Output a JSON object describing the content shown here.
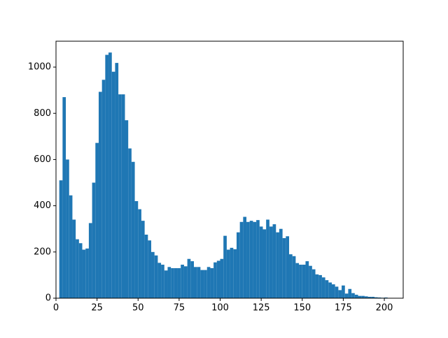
{
  "chart_data": {
    "type": "histogram",
    "bins": [
      2,
      4,
      6,
      8,
      10,
      12,
      14,
      16,
      18,
      20,
      22,
      24,
      26,
      28,
      30,
      32,
      34,
      36,
      38,
      40,
      42,
      44,
      46,
      48,
      50,
      52,
      54,
      56,
      58,
      60,
      62,
      64,
      66,
      68,
      70,
      72,
      74,
      76,
      78,
      80,
      82,
      84,
      86,
      88,
      90,
      92,
      94,
      96,
      98,
      100,
      102,
      104,
      106,
      108,
      110,
      112,
      114,
      116,
      118,
      120,
      122,
      124,
      126,
      128,
      130,
      132,
      134,
      136,
      138,
      140,
      142,
      144,
      146,
      148,
      150,
      152,
      154,
      156,
      158,
      160,
      162,
      164,
      166,
      168,
      170,
      172,
      174,
      176,
      178,
      180,
      182,
      184,
      186,
      188,
      190,
      192,
      194,
      196,
      198,
      200,
      202
    ],
    "values": [
      510,
      870,
      600,
      445,
      340,
      255,
      238,
      210,
      215,
      325,
      500,
      672,
      893,
      945,
      1053,
      1063,
      980,
      1018,
      882,
      882,
      770,
      648,
      590,
      420,
      385,
      335,
      275,
      250,
      200,
      185,
      153,
      145,
      120,
      135,
      130,
      130,
      130,
      145,
      138,
      170,
      160,
      135,
      135,
      122,
      122,
      135,
      130,
      155,
      162,
      170,
      270,
      210,
      218,
      212,
      285,
      330,
      352,
      330,
      335,
      330,
      338,
      310,
      298,
      340,
      310,
      320,
      285,
      300,
      260,
      268,
      190,
      182,
      152,
      145,
      145,
      160,
      140,
      125,
      103,
      100,
      90,
      78,
      68,
      60,
      50,
      35,
      55,
      20,
      40,
      22,
      15,
      10,
      10,
      8,
      6,
      6,
      4,
      3,
      2,
      3
    ],
    "color": "#1f77b4",
    "xlim": [
      0,
      211.5
    ],
    "ylim": [
      0,
      1112
    ],
    "xticks": [
      0,
      25,
      50,
      75,
      100,
      125,
      150,
      175,
      200
    ],
    "yticks": [
      0,
      200,
      400,
      600,
      800,
      1000
    ]
  }
}
